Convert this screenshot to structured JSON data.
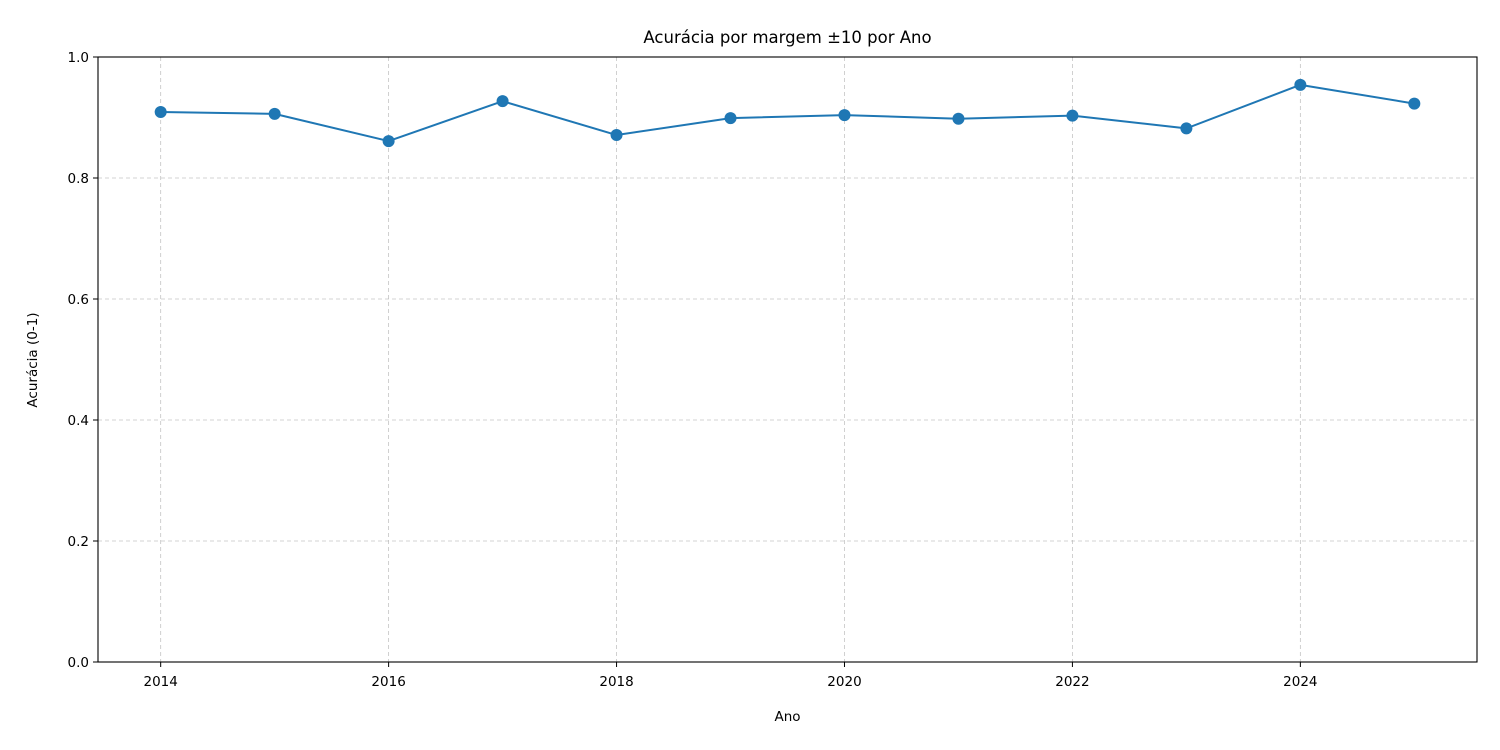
{
  "chart_data": {
    "type": "line",
    "title": "Acurácia por margem ±10 por Ano",
    "xlabel": "Ano",
    "ylabel": "Acurácia (0-1)",
    "xlim": [
      2013.45,
      2025.55
    ],
    "ylim": [
      0.0,
      1.0
    ],
    "xticks": [
      2014,
      2016,
      2018,
      2020,
      2022,
      2024
    ],
    "yticks": [
      "0.0",
      "0.2",
      "0.4",
      "0.6",
      "0.8",
      "1.0"
    ],
    "grid": true,
    "series": [
      {
        "marker": "circle",
        "color": "#1f77b4",
        "x": [
          2014,
          2015,
          2016,
          2017,
          2018,
          2019,
          2020,
          2021,
          2022,
          2023,
          2024,
          2025
        ],
        "y": [
          0.909,
          0.906,
          0.861,
          0.927,
          0.871,
          0.899,
          0.904,
          0.898,
          0.903,
          0.882,
          0.954,
          0.923
        ]
      }
    ]
  }
}
